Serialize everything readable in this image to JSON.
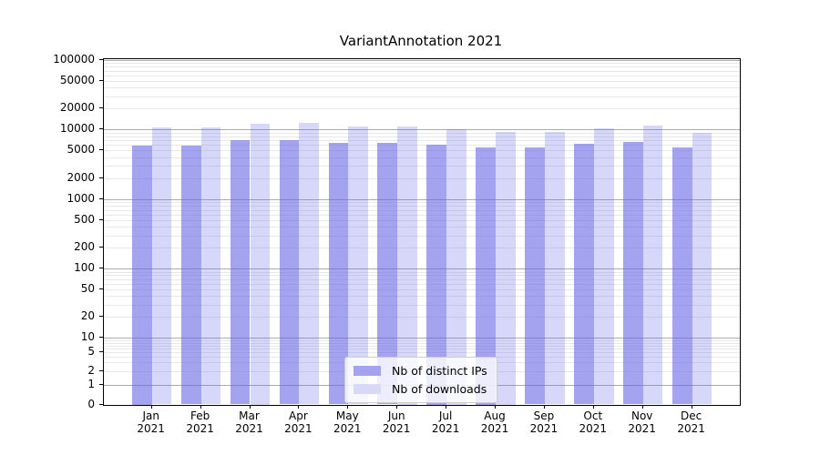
{
  "chart_data": {
    "type": "bar",
    "title": "VariantAnnotation 2021",
    "categories": [
      "Jan 2021",
      "Feb 2021",
      "Mar 2021",
      "Apr 2021",
      "May 2021",
      "Jun 2021",
      "Jul 2021",
      "Aug 2021",
      "Sep 2021",
      "Oct 2021",
      "Nov 2021",
      "Dec 2021"
    ],
    "series": [
      {
        "name": "Nb of distinct IPs",
        "color_hex": "#a3a3ef",
        "fill_rgba": "rgba(102,102,230,0.6)",
        "values": [
          5950,
          5900,
          7000,
          7050,
          6500,
          6500,
          6050,
          5600,
          5450,
          6150,
          6650,
          5550
        ]
      },
      {
        "name": "Nb of downloads",
        "color_hex": "#d8d8f8",
        "fill_rgba": "rgba(102,102,230,0.26)",
        "values": [
          10700,
          10700,
          12100,
          12400,
          11100,
          11200,
          10250,
          9350,
          9100,
          10450,
          11350,
          8900
        ]
      }
    ],
    "yticks": [
      100000,
      50000,
      20000,
      10000,
      5000,
      2000,
      1000,
      500,
      200,
      100,
      50,
      20,
      10,
      5,
      2,
      1,
      0
    ],
    "yscale": "log-like with 0 baseline",
    "ylim": [
      0,
      100000
    ],
    "grid": {
      "major_color": "#ababab",
      "minor_color": "#e8e8e8"
    },
    "legend_position": "lower center"
  }
}
